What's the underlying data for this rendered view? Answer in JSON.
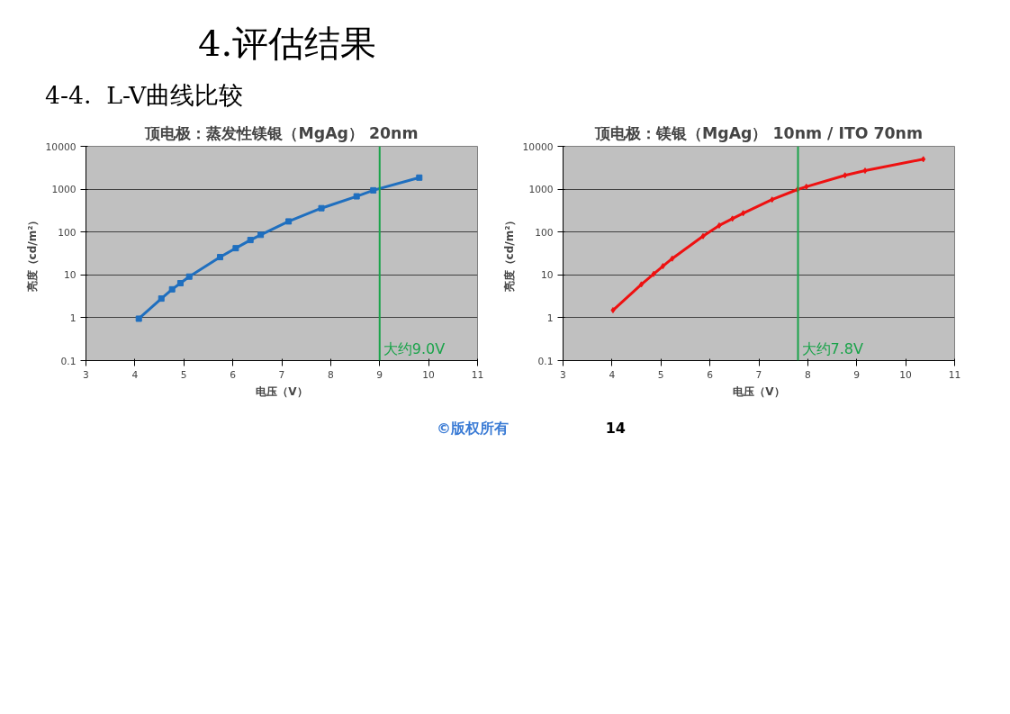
{
  "chart_data": [
    {
      "type": "line",
      "title": "顶电极：蒸发性镁银（MgAg） 20nm",
      "xlabel": "电压（V）",
      "ylabel": "亮度（cd/m²）",
      "annotations": [
        "4.评估结果",
        "4-4.  L-V曲线比较"
      ],
      "log": true,
      "grid": "y",
      "marker": "square",
      "xlim": [
        3,
        11
      ],
      "xticks": [
        3,
        4,
        5,
        6,
        7,
        8,
        9,
        10,
        11
      ],
      "ylim": [
        0.1,
        10000
      ],
      "yticks": [
        0.1,
        1,
        10,
        100,
        1000,
        10000
      ],
      "series": [
        {
          "color": "#1f6fbf",
          "x": [
            4.08,
            4.54,
            4.76,
            4.93,
            5.11,
            5.74,
            6.06,
            6.36,
            6.57,
            7.14,
            7.81,
            8.53,
            8.87,
            9.81
          ],
          "values": [
            0.95,
            2.8,
            4.6,
            6.4,
            9.1,
            26,
            42,
            65,
            86,
            177,
            360,
            680,
            940,
            1860
          ]
        }
      ],
      "ref_lines": [
        {
          "axis": "x",
          "value": 9.0,
          "label": "大约9.0V",
          "color": "#1aa34a"
        }
      ]
    },
    {
      "type": "line",
      "title": "顶电极：镁银（MgAg） 10nm / ITO 70nm",
      "xlabel": "电压（V）",
      "ylabel": "亮度（cd/m²）",
      "annotations": [
        "©版权所有",
        "14"
      ],
      "log": true,
      "grid": "y",
      "marker": "diamond",
      "xlim": [
        3,
        11
      ],
      "xticks": [
        3,
        4,
        5,
        6,
        7,
        8,
        9,
        10,
        11
      ],
      "ylim": [
        0.1,
        10000
      ],
      "yticks": [
        0.1,
        1,
        10,
        100,
        1000,
        10000
      ],
      "series": [
        {
          "color": "#ee1111",
          "x": [
            4.02,
            4.6,
            4.85,
            5.04,
            5.23,
            5.86,
            6.19,
            6.46,
            6.68,
            7.27,
            7.79,
            7.97,
            8.76,
            9.17,
            10.36
          ],
          "values": [
            1.5,
            6,
            10.5,
            16,
            24,
            80,
            142,
            205,
            275,
            570,
            980,
            1140,
            2100,
            2700,
            5000
          ]
        }
      ],
      "ref_lines": [
        {
          "axis": "x",
          "value": 7.8,
          "label": "大约7.8V",
          "color": "#1aa34a"
        }
      ]
    }
  ]
}
